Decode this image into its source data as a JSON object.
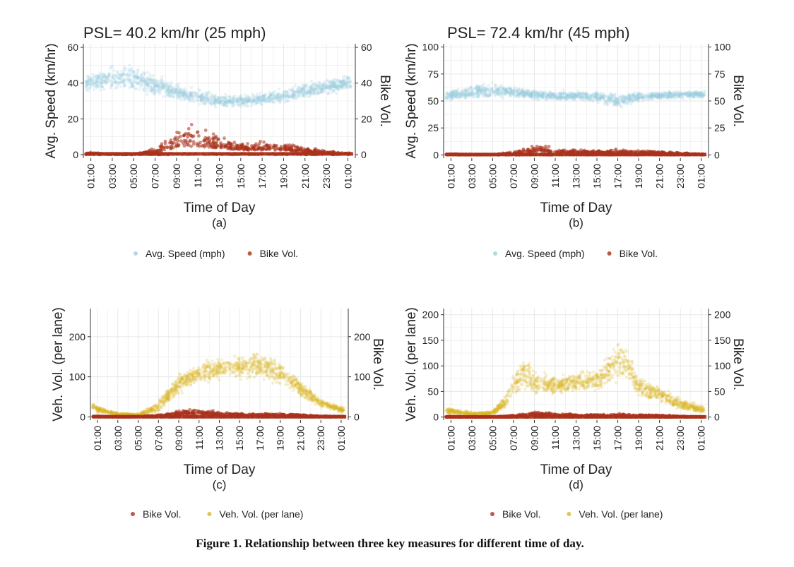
{
  "figure_caption": "Figure 1. Relationship between three key measures for different time of day.",
  "colors": {
    "speed": "#9ccfdd",
    "bike": "#a9321c",
    "veh": "#d9b526",
    "grid": "#e6e6e6",
    "axis": "#333333"
  },
  "chart_data": [
    {
      "id": "a",
      "type": "scatter",
      "title": "PSL= 40.2 km/hr (25 mph)",
      "xlabel": "Time of Day",
      "sublabel": "(a)",
      "ylabel_left": "Avg. Speed (km/hr)",
      "ylabel_right": "Bike Vol.",
      "ylim": [
        -2,
        62
      ],
      "yticks": [
        "0",
        "20",
        "40",
        "60"
      ],
      "ytick_values": [
        0,
        20,
        40,
        60
      ],
      "xticks": [
        "01:00",
        "03:00",
        "05:00",
        "07:00",
        "09:00",
        "11:00",
        "13:00",
        "15:00",
        "17:00",
        "19:00",
        "21:00",
        "23:00",
        "01:00"
      ],
      "legend": [
        "Avg. Speed (mph)",
        "Bike Vol."
      ],
      "series": [
        {
          "name": "Avg. Speed (mph)",
          "color_key": "speed",
          "hours": [
            1,
            3,
            5,
            7,
            9,
            11,
            13,
            15,
            17,
            19,
            21,
            23,
            25
          ],
          "center": [
            40,
            43,
            42,
            39,
            35,
            32,
            30,
            30,
            31,
            33,
            36,
            38,
            40
          ],
          "spread": [
            6,
            10,
            10,
            7,
            6,
            6,
            5,
            5,
            5,
            5,
            6,
            6,
            6
          ]
        },
        {
          "name": "Bike Vol.",
          "color_key": "bike",
          "hours": [
            1,
            3,
            5,
            7,
            9,
            11,
            13,
            15,
            17,
            19,
            21,
            23,
            25
          ],
          "center": [
            0.5,
            0.2,
            0.2,
            2,
            8,
            9,
            7,
            5,
            5,
            5,
            3,
            1,
            0.5
          ],
          "spread": [
            1,
            0.5,
            0.5,
            3,
            12,
            14,
            8,
            5,
            5,
            5,
            3,
            2,
            1
          ]
        }
      ]
    },
    {
      "id": "b",
      "type": "scatter",
      "title": "PSL= 72.4 km/hr (45 mph)",
      "xlabel": "Time of Day",
      "sublabel": "(b)",
      "ylabel_left": "Avg. Speed (km/hr)",
      "ylabel_right": "Bike Vol.",
      "ylim": [
        -3,
        103
      ],
      "yticks": [
        "0",
        "25",
        "50",
        "75",
        "100"
      ],
      "ytick_values": [
        0,
        25,
        50,
        75,
        100
      ],
      "xticks": [
        "01:00",
        "03:00",
        "05:00",
        "07:00",
        "09:00",
        "11:00",
        "13:00",
        "15:00",
        "17:00",
        "19:00",
        "21:00",
        "23:00",
        "01:00"
      ],
      "legend": [
        "Avg. Speed (mph)",
        "Bike Vol."
      ],
      "series": [
        {
          "name": "Avg. Speed (mph)",
          "color_key": "speed",
          "hours": [
            1,
            3,
            5,
            7,
            9,
            11,
            13,
            15,
            17,
            19,
            21,
            23,
            25
          ],
          "center": [
            55,
            58,
            60,
            58,
            56,
            55,
            55,
            54,
            50,
            54,
            55,
            56,
            56
          ],
          "spread": [
            6,
            9,
            10,
            7,
            6,
            6,
            6,
            7,
            9,
            6,
            5,
            5,
            5
          ]
        },
        {
          "name": "Bike Vol.",
          "color_key": "bike",
          "hours": [
            1,
            3,
            5,
            7,
            9,
            11,
            13,
            15,
            17,
            19,
            21,
            23,
            25
          ],
          "center": [
            0.5,
            0.2,
            0.3,
            2,
            6,
            4,
            3,
            3,
            3,
            3,
            2,
            1,
            0.5
          ],
          "spread": [
            1,
            0.5,
            0.5,
            2,
            8,
            5,
            4,
            3,
            4,
            3,
            3,
            2,
            1
          ]
        }
      ]
    },
    {
      "id": "c",
      "type": "scatter",
      "title": "",
      "xlabel": "Time of Day",
      "sublabel": "(c)",
      "ylabel_left": "Veh. Vol. (per lane)",
      "ylabel_right": "Bike Vol.",
      "ylim": [
        -8,
        270
      ],
      "yticks": [
        "0",
        "100",
        "200"
      ],
      "ytick_values": [
        0,
        100,
        200
      ],
      "xticks": [
        "01:00",
        "03:00",
        "05:00",
        "07:00",
        "09:00",
        "11:00",
        "13:00",
        "15:00",
        "17:00",
        "19:00",
        "21:00",
        "23:00",
        "01:00"
      ],
      "legend": [
        "Bike Vol.",
        "Veh. Vol. (per lane)"
      ],
      "series": [
        {
          "name": "Veh. Vol. (per lane)",
          "color_key": "veh",
          "hours": [
            0.5,
            1,
            3,
            5,
            7,
            9,
            11,
            13,
            15,
            17,
            19,
            21,
            23,
            25
          ],
          "center": [
            28,
            18,
            7,
            5,
            25,
            85,
            110,
            120,
            125,
            130,
            110,
            70,
            35,
            18
          ],
          "spread": [
            12,
            10,
            5,
            5,
            20,
            35,
            35,
            35,
            40,
            45,
            40,
            30,
            15,
            10
          ]
        },
        {
          "name": "Bike Vol.",
          "color_key": "bike",
          "hours": [
            1,
            3,
            5,
            7,
            9,
            11,
            13,
            15,
            17,
            19,
            21,
            23,
            25
          ],
          "center": [
            1,
            0.5,
            0.5,
            3,
            12,
            14,
            10,
            7,
            7,
            7,
            5,
            2,
            1
          ],
          "spread": [
            2,
            1,
            1,
            4,
            12,
            14,
            9,
            6,
            6,
            6,
            4,
            2,
            2
          ]
        }
      ]
    },
    {
      "id": "d",
      "type": "scatter",
      "title": "",
      "xlabel": "Time of Day",
      "sublabel": "(d)",
      "ylabel_left": "Veh. Vol. (per lane)",
      "ylabel_right": "Bike Vol.",
      "ylim": [
        -6,
        212
      ],
      "yticks": [
        "0",
        "50",
        "100",
        "150",
        "200"
      ],
      "ytick_values": [
        0,
        50,
        100,
        150,
        200
      ],
      "xticks": [
        "01:00",
        "03:00",
        "05:00",
        "07:00",
        "09:00",
        "11:00",
        "13:00",
        "15:00",
        "17:00",
        "19:00",
        "21:00",
        "23:00",
        "01:00"
      ],
      "legend": [
        "Bike Vol.",
        "Veh. Vol. (per lane)"
      ],
      "series": [
        {
          "name": "Veh. Vol. (per lane)",
          "color_key": "veh",
          "hours": [
            1,
            3,
            5,
            6,
            7,
            8,
            9,
            11,
            13,
            15,
            16,
            17,
            18,
            19,
            21,
            23,
            25
          ],
          "center": [
            12,
            6,
            8,
            25,
            60,
            90,
            65,
            62,
            68,
            70,
            90,
            115,
            100,
            60,
            45,
            25,
            15
          ],
          "spread": [
            8,
            5,
            6,
            15,
            30,
            45,
            30,
            25,
            25,
            28,
            40,
            55,
            45,
            30,
            20,
            15,
            10
          ]
        },
        {
          "name": "Bike Vol.",
          "color_key": "bike",
          "hours": [
            1,
            3,
            5,
            7,
            9,
            11,
            13,
            15,
            17,
            19,
            21,
            23,
            25
          ],
          "center": [
            0.5,
            0.3,
            0.3,
            2,
            8,
            5,
            4,
            4,
            5,
            4,
            3,
            1,
            0.5
          ],
          "spread": [
            1,
            0.5,
            0.5,
            3,
            8,
            5,
            4,
            4,
            5,
            4,
            3,
            2,
            1
          ]
        }
      ]
    }
  ]
}
